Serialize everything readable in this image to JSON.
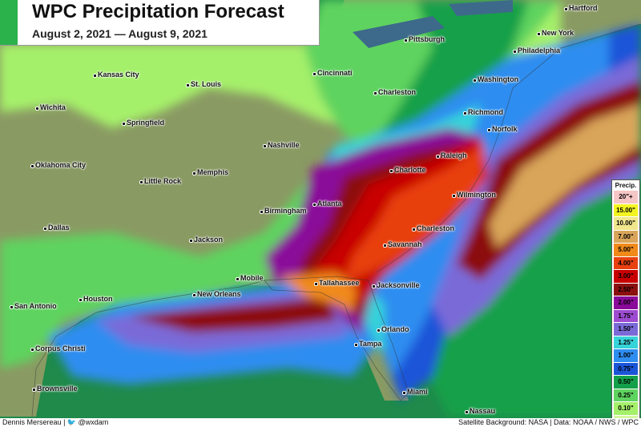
{
  "title": "WPC Precipitation Forecast",
  "subtitle": "August 2, 2021 — August 9, 2021",
  "legend": {
    "header": "Precip.",
    "items": [
      {
        "label": "20\"+",
        "color": "#f6c6c6"
      },
      {
        "label": "15.00\"",
        "color": "#f4f422"
      },
      {
        "label": "10.00\"",
        "color": "#f0e68c"
      },
      {
        "label": "7.00\"",
        "color": "#d9a55a"
      },
      {
        "label": "5.00\"",
        "color": "#f08a1a"
      },
      {
        "label": "4.00\"",
        "color": "#e8400f"
      },
      {
        "label": "3.00\"",
        "color": "#c80000"
      },
      {
        "label": "2.50\"",
        "color": "#8c1010"
      },
      {
        "label": "2.00\"",
        "color": "#8a0a9a"
      },
      {
        "label": "1.75\"",
        "color": "#9d4bd0"
      },
      {
        "label": "1.50\"",
        "color": "#7a6ad8"
      },
      {
        "label": "1.25\"",
        "color": "#36d3d9"
      },
      {
        "label": "1.00\"",
        "color": "#2e8df0"
      },
      {
        "label": "0.75\"",
        "color": "#1a55d8"
      },
      {
        "label": "0.50\"",
        "color": "#14a04a"
      },
      {
        "label": "0.25\"",
        "color": "#5fd35f"
      },
      {
        "label": "0.10\"",
        "color": "#a5f06a"
      },
      {
        "label": "0.01\"",
        "color": "#d4f7a0"
      }
    ]
  },
  "cities": [
    "Hartford",
    "New York",
    "Pittsburgh",
    "Philadelphia",
    "Kansas City",
    "St. Louis",
    "Cincinnati",
    "Washington",
    "Charleston",
    "Wichita",
    "Springfield",
    "Richmond",
    "Norfolk",
    "Nashville",
    "Raleigh",
    "Oklahoma City",
    "Little Rock",
    "Memphis",
    "Charlotte",
    "Wilmington",
    "Atlanta",
    "Birmingham",
    "Dallas",
    "Charleston",
    "Savannah",
    "Jackson",
    "Mobile",
    "Tallahassee",
    "Jacksonville",
    "New Orleans",
    "Houston",
    "San Antonio",
    "Orlando",
    "Tampa",
    "Corpus Christi",
    "Miami",
    "Brownsville",
    "Nassau"
  ],
  "footer": {
    "author": "Dennis Mersereau",
    "separator": "|",
    "twitter_icon": "twitter-bird-icon",
    "handle": "@wxdam",
    "credits": "Satellite Background: NASA | Data: NOAA / NWS / WPC"
  }
}
